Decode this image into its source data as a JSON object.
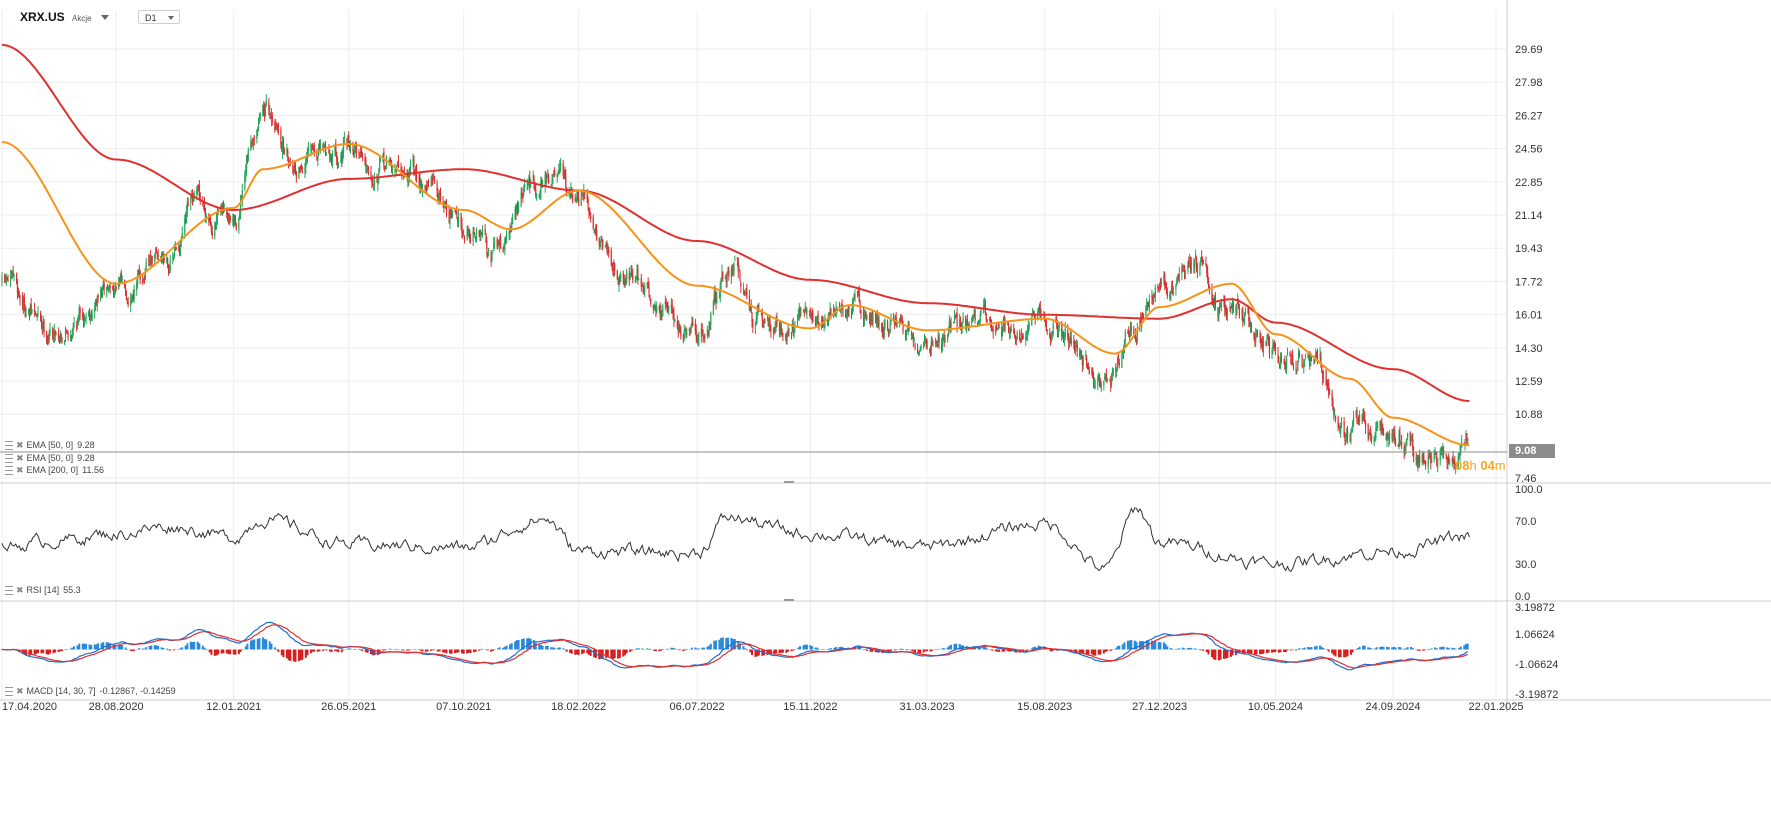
{
  "header": {
    "symbol": "XRX.US",
    "instrument_type": "Akcje",
    "timeframe": "D1"
  },
  "price_label": "9.08",
  "countdown": {
    "hours": "08",
    "hours_unit": "h",
    "minutes": "04",
    "minutes_unit": "m"
  },
  "indicators": {
    "ema_a": {
      "name": "EMA",
      "params": "[50, 0]",
      "value": "9.28",
      "color": "#f7931a"
    },
    "ema_b": {
      "name": "EMA",
      "params": "[50, 0]",
      "value": "9.28",
      "color": "#f7931a"
    },
    "ema_c": {
      "name": "EMA",
      "params": "[200, 0]",
      "value": "11.56",
      "color": "#e03030"
    },
    "rsi": {
      "name": "RSI",
      "params": "[14]",
      "value": "55.3"
    },
    "macd": {
      "name": "MACD",
      "params": "[14, 30, 7]",
      "value1": "-0.12867",
      "value2": "-0.14259"
    }
  },
  "colors": {
    "bull": "#26a65b",
    "bear": "#d63031",
    "ema50": "#f7931a",
    "ema200": "#e03030",
    "rsi": "#333333",
    "macd_line": "#1f6fd1",
    "signal_line": "#e03030",
    "hist_pos": "#2a8ad8",
    "hist_neg": "#d62020",
    "price_line": "#8c8c8c"
  },
  "chart_data": [
    {
      "type": "candlestick",
      "title": "XRX.US",
      "price_axis_ticks": [
        "29.69",
        "27.98",
        "26.27",
        "24.56",
        "22.85",
        "21.14",
        "19.43",
        "17.72",
        "16.01",
        "14.30",
        "12.59",
        "10.88",
        "7.46"
      ],
      "ylim": [
        7.46,
        29.69
      ],
      "date_ticks": [
        "17.04.2020",
        "28.08.2020",
        "12.01.2021",
        "26.05.2021",
        "07.10.2021",
        "18.02.2022",
        "06.07.2022",
        "15.11.2022",
        "31.03.2023",
        "15.08.2023",
        "27.12.2023",
        "10.05.2024",
        "24.09.2024",
        "22.01.2025"
      ],
      "last_price": 9.08,
      "approx_close_path": [
        [
          "17.04.2020",
          17.6
        ],
        [
          "15.06.2020",
          15.2
        ],
        [
          "28.08.2020",
          17.3
        ],
        [
          "30.10.2020",
          19.0
        ],
        [
          "30.11.2020",
          21.5
        ],
        [
          "12.01.2021",
          20.5
        ],
        [
          "15.02.2021",
          26.8
        ],
        [
          "26.03.2021",
          24.0
        ],
        [
          "26.05.2021",
          24.6
        ],
        [
          "10.07.2021",
          23.6
        ],
        [
          "20.08.2021",
          23.0
        ],
        [
          "07.10.2021",
          20.8
        ],
        [
          "15.11.2021",
          19.5
        ],
        [
          "25.12.2021",
          22.5
        ],
        [
          "10.01.2022",
          23.4
        ],
        [
          "18.02.2022",
          21.5
        ],
        [
          "20.04.2022",
          18.2
        ],
        [
          "01.06.2022",
          16.2
        ],
        [
          "06.07.2022",
          14.5
        ],
        [
          "15.08.2022",
          18.5
        ],
        [
          "20.09.2022",
          15.5
        ],
        [
          "15.11.2022",
          15.6
        ],
        [
          "31.12.2022",
          16.4
        ],
        [
          "31.03.2023",
          14.8
        ],
        [
          "01.06.2023",
          15.6
        ],
        [
          "15.08.2023",
          15.4
        ],
        [
          "25.10.2023",
          12.6
        ],
        [
          "01.12.2023",
          15.5
        ],
        [
          "27.12.2023",
          17.3
        ],
        [
          "10.02.2024",
          18.2
        ],
        [
          "20.03.2024",
          16.4
        ],
        [
          "10.05.2024",
          13.8
        ],
        [
          "25.06.2024",
          13.6
        ],
        [
          "05.08.2024",
          10.2
        ],
        [
          "24.09.2024",
          9.9
        ],
        [
          "15.11.2024",
          8.4
        ],
        [
          "05.12.2024",
          8.9
        ],
        [
          "22.12.2024",
          9.08
        ]
      ],
      "series": [
        {
          "name": "EMA [50, 0]",
          "last": 9.28,
          "approx": [
            [
              "17.04.2020",
              24.9
            ],
            [
              "28.08.2020",
              17.6
            ],
            [
              "12.01.2021",
              21.5
            ],
            [
              "15.02.2021",
              23.5
            ],
            [
              "26.05.2021",
              24.8
            ],
            [
              "07.10.2021",
              21.4
            ],
            [
              "01.12.2021",
              20.4
            ],
            [
              "18.02.2022",
              22.4
            ],
            [
              "06.07.2022",
              17.5
            ],
            [
              "15.11.2022",
              15.3
            ],
            [
              "31.12.2022",
              16.5
            ],
            [
              "31.03.2023",
              15.2
            ],
            [
              "15.08.2023",
              15.8
            ],
            [
              "05.11.2023",
              14.0
            ],
            [
              "27.12.2023",
              16.4
            ],
            [
              "20.03.2024",
              17.6
            ],
            [
              "10.05.2024",
              15.0
            ],
            [
              "05.08.2024",
              12.7
            ],
            [
              "24.09.2024",
              10.7
            ],
            [
              "22.12.2024",
              9.28
            ]
          ]
        },
        {
          "name": "EMA [200, 0]",
          "last": 11.56,
          "approx": [
            [
              "17.04.2020",
              29.9
            ],
            [
              "28.08.2020",
              24.0
            ],
            [
              "12.01.2021",
              21.4
            ],
            [
              "26.05.2021",
              23.0
            ],
            [
              "07.10.2021",
              23.5
            ],
            [
              "18.02.2022",
              22.4
            ],
            [
              "06.07.2022",
              19.8
            ],
            [
              "15.11.2022",
              17.8
            ],
            [
              "31.03.2023",
              16.6
            ],
            [
              "15.08.2023",
              16.0
            ],
            [
              "27.12.2023",
              15.8
            ],
            [
              "20.03.2024",
              16.8
            ],
            [
              "10.05.2024",
              15.6
            ],
            [
              "24.09.2024",
              13.2
            ],
            [
              "22.12.2024",
              11.56
            ]
          ]
        }
      ]
    },
    {
      "type": "line",
      "title": "RSI [14]",
      "y_ticks": [
        "100.0",
        "70.0",
        "30.0",
        "0.0"
      ],
      "ylim": [
        0,
        100
      ],
      "last": 55.3,
      "approx": [
        [
          "17.04.2020",
          45
        ],
        [
          "15.06.2020",
          52
        ],
        [
          "28.08.2020",
          58
        ],
        [
          "30.10.2020",
          65
        ],
        [
          "12.01.2021",
          55
        ],
        [
          "15.02.2021",
          72
        ],
        [
          "26.05.2021",
          48
        ],
        [
          "07.10.2021",
          45
        ],
        [
          "10.01.2022",
          72
        ],
        [
          "18.02.2022",
          42
        ],
        [
          "06.07.2022",
          40
        ],
        [
          "10.08.2022",
          73
        ],
        [
          "15.11.2022",
          58
        ],
        [
          "31.03.2023",
          46
        ],
        [
          "15.08.2023",
          68
        ],
        [
          "25.10.2023",
          25
        ],
        [
          "01.12.2023",
          82
        ],
        [
          "27.12.2023",
          50
        ],
        [
          "10.05.2024",
          30
        ],
        [
          "24.09.2024",
          42
        ],
        [
          "22.12.2024",
          55.3
        ]
      ]
    },
    {
      "type": "line",
      "title": "MACD [14, 30, 7]",
      "y_ticks": [
        "3.19872",
        "1.06624",
        "-1.06624",
        "-3.19872"
      ],
      "ylim": [
        -3.19872,
        3.19872
      ],
      "series": [
        {
          "name": "MACD",
          "last": -0.12867
        },
        {
          "name": "Signal",
          "last": -0.14259
        }
      ]
    }
  ]
}
